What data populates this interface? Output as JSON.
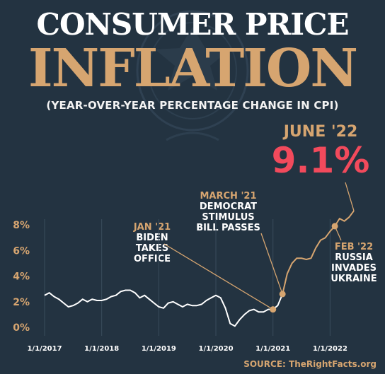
{
  "header": {
    "title_line1": "CONSUMER PRICE",
    "title_line2": "INFLATION",
    "subtitle": "(YEAR-OVER-YEAR PERCENTAGE CHANGE IN CPI)"
  },
  "callout": {
    "label": "JUNE '22",
    "value": "9.1%"
  },
  "annotations": {
    "jan21": {
      "heading": "JAN '21",
      "lines": [
        "BIDEN",
        "TAKES",
        "OFFICE"
      ]
    },
    "mar21": {
      "heading": "MARCH '21",
      "lines": [
        "DEMOCRAT",
        "STIMULUS",
        "BILL PASSES"
      ]
    },
    "feb22": {
      "heading": "FEB '22",
      "lines": [
        "RUSSIA",
        "INVADES",
        "UKRAINE"
      ]
    }
  },
  "source": "SOURCE: TheRightFacts.org",
  "colors": {
    "background": "#233341",
    "accent": "#d6a570",
    "highlight": "#f24a5c",
    "line_early": "#ffffff",
    "line_late": "#d6a570"
  },
  "chart_data": {
    "type": "line",
    "title": "CONSUMER PRICE INFLATION",
    "subtitle": "(YEAR-OVER-YEAR PERCENTAGE CHANGE IN CPI)",
    "x_unit": "month",
    "xlim": [
      "2017-01",
      "2022-06"
    ],
    "ylim": [
      0,
      9
    ],
    "y_ticks": [
      0,
      2,
      4,
      6,
      8
    ],
    "y_tick_labels": [
      "0%",
      "2%",
      "4%",
      "6%",
      "8%"
    ],
    "x_ticks": [
      "2017-01",
      "2018-01",
      "2019-01",
      "2020-01",
      "2021-01",
      "2022-01"
    ],
    "x_tick_labels": [
      "1/1/2017",
      "1/1/2018",
      "1/1/2019",
      "1/1/2020",
      "1/1/2021",
      "1/1/2022"
    ],
    "grid": "vertical",
    "series": [
      {
        "color_change_at": "2021-03",
        "x": [
          "2017-01",
          "2017-02",
          "2017-03",
          "2017-04",
          "2017-05",
          "2017-06",
          "2017-07",
          "2017-08",
          "2017-09",
          "2017-10",
          "2017-11",
          "2017-12",
          "2018-01",
          "2018-02",
          "2018-03",
          "2018-04",
          "2018-05",
          "2018-06",
          "2018-07",
          "2018-08",
          "2018-09",
          "2018-10",
          "2018-11",
          "2018-12",
          "2019-01",
          "2019-02",
          "2019-03",
          "2019-04",
          "2019-05",
          "2019-06",
          "2019-07",
          "2019-08",
          "2019-09",
          "2019-10",
          "2019-11",
          "2019-12",
          "2020-01",
          "2020-02",
          "2020-03",
          "2020-04",
          "2020-05",
          "2020-06",
          "2020-07",
          "2020-08",
          "2020-09",
          "2020-10",
          "2020-11",
          "2020-12",
          "2021-01",
          "2021-02",
          "2021-03",
          "2021-04",
          "2021-05",
          "2021-06",
          "2021-07",
          "2021-08",
          "2021-09",
          "2021-10",
          "2021-11",
          "2021-12",
          "2022-01",
          "2022-02",
          "2022-03",
          "2022-04",
          "2022-05",
          "2022-06"
        ],
        "values": [
          2.5,
          2.7,
          2.4,
          2.2,
          1.9,
          1.6,
          1.7,
          1.9,
          2.2,
          2.0,
          2.2,
          2.1,
          2.1,
          2.2,
          2.4,
          2.5,
          2.8,
          2.9,
          2.9,
          2.7,
          2.3,
          2.5,
          2.2,
          1.9,
          1.6,
          1.5,
          1.9,
          2.0,
          1.8,
          1.6,
          1.8,
          1.7,
          1.7,
          1.8,
          2.1,
          2.3,
          2.5,
          2.3,
          1.5,
          0.3,
          0.1,
          0.6,
          1.0,
          1.3,
          1.4,
          1.2,
          1.2,
          1.4,
          1.4,
          1.7,
          2.6,
          4.2,
          5.0,
          5.4,
          5.4,
          5.3,
          5.4,
          6.2,
          6.8,
          7.0,
          7.5,
          7.9,
          8.5,
          8.3,
          8.6,
          9.1
        ]
      }
    ],
    "markers": [
      {
        "x": "2021-01",
        "y": 1.4,
        "label": "JAN '21"
      },
      {
        "x": "2021-03",
        "y": 2.6,
        "label": "MARCH '21"
      },
      {
        "x": "2022-02",
        "y": 7.9,
        "label": "FEB '22"
      },
      {
        "x": "2022-06",
        "y": 9.1,
        "label": "JUNE '22"
      }
    ]
  }
}
